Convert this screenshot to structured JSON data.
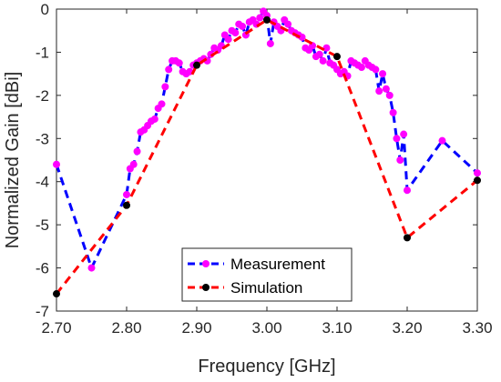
{
  "chart_data": {
    "type": "line",
    "xlabel": "Frequency [GHz]",
    "ylabel": "Normalized Gain [dBi]",
    "xlim": [
      2.7,
      3.3
    ],
    "ylim": [
      -7,
      0
    ],
    "xticks": [
      "2.70",
      "2.80",
      "2.90",
      "3.00",
      "3.10",
      "3.20",
      "3.30"
    ],
    "yticks": [
      "0",
      "-1",
      "-2",
      "-3",
      "-4",
      "-5",
      "-6",
      "-7"
    ],
    "grid": false,
    "legend_position": "bottom-center",
    "series": [
      {
        "name": "Measurement",
        "line_color": "#0000ff",
        "marker_color": "#ff00ff",
        "line_style": "dashed",
        "x": [
          2.7,
          2.75,
          2.8,
          2.805,
          2.81,
          2.815,
          2.82,
          2.825,
          2.83,
          2.835,
          2.84,
          2.845,
          2.85,
          2.855,
          2.86,
          2.865,
          2.87,
          2.875,
          2.88,
          2.885,
          2.89,
          2.895,
          2.9,
          2.905,
          2.91,
          2.915,
          2.92,
          2.925,
          2.93,
          2.935,
          2.94,
          2.945,
          2.95,
          2.955,
          2.96,
          2.965,
          2.97,
          2.975,
          2.98,
          2.985,
          2.99,
          2.995,
          3.0,
          3.005,
          3.01,
          3.015,
          3.02,
          3.025,
          3.03,
          3.035,
          3.04,
          3.045,
          3.05,
          3.055,
          3.06,
          3.065,
          3.07,
          3.075,
          3.08,
          3.085,
          3.09,
          3.095,
          3.1,
          3.105,
          3.11,
          3.115,
          3.12,
          3.125,
          3.13,
          3.135,
          3.14,
          3.145,
          3.15,
          3.155,
          3.16,
          3.165,
          3.17,
          3.175,
          3.18,
          3.185,
          3.19,
          3.195,
          3.2,
          3.25,
          3.3
        ],
        "y": [
          -3.6,
          -6.0,
          -4.3,
          -3.7,
          -3.6,
          -3.3,
          -2.85,
          -2.8,
          -2.7,
          -2.6,
          -2.55,
          -2.3,
          -2.2,
          -1.8,
          -1.4,
          -1.2,
          -1.2,
          -1.25,
          -1.45,
          -1.5,
          -1.45,
          -1.3,
          -1.25,
          -1.2,
          -1.15,
          -1.2,
          -1.05,
          -0.9,
          -0.95,
          -0.85,
          -0.6,
          -0.7,
          -0.5,
          -0.55,
          -0.35,
          -0.4,
          -0.6,
          -0.3,
          -0.25,
          -0.35,
          -0.2,
          -0.05,
          -0.15,
          -0.8,
          -0.3,
          -0.4,
          -0.5,
          -0.25,
          -0.35,
          -0.5,
          -0.55,
          -0.6,
          -0.65,
          -0.9,
          -0.95,
          -0.85,
          -1.1,
          -1.05,
          -1.2,
          -0.9,
          -1.25,
          -1.3,
          -1.4,
          -1.5,
          -1.45,
          -1.55,
          -1.2,
          -1.25,
          -1.3,
          -1.35,
          -1.2,
          -1.3,
          -1.35,
          -1.4,
          -1.9,
          -1.5,
          -1.85,
          -2.0,
          -2.4,
          -3.0,
          -3.5,
          -2.9,
          -4.2,
          -3.05,
          -3.8
        ]
      },
      {
        "name": "Simulation",
        "line_color": "#ff0000",
        "marker_color": "#000000",
        "line_style": "dashed",
        "x": [
          2.7,
          2.8,
          2.9,
          3.0,
          3.1,
          3.2,
          3.3
        ],
        "y": [
          -6.6,
          -4.55,
          -1.3,
          -0.25,
          -1.1,
          -5.3,
          -3.97
        ]
      }
    ]
  }
}
